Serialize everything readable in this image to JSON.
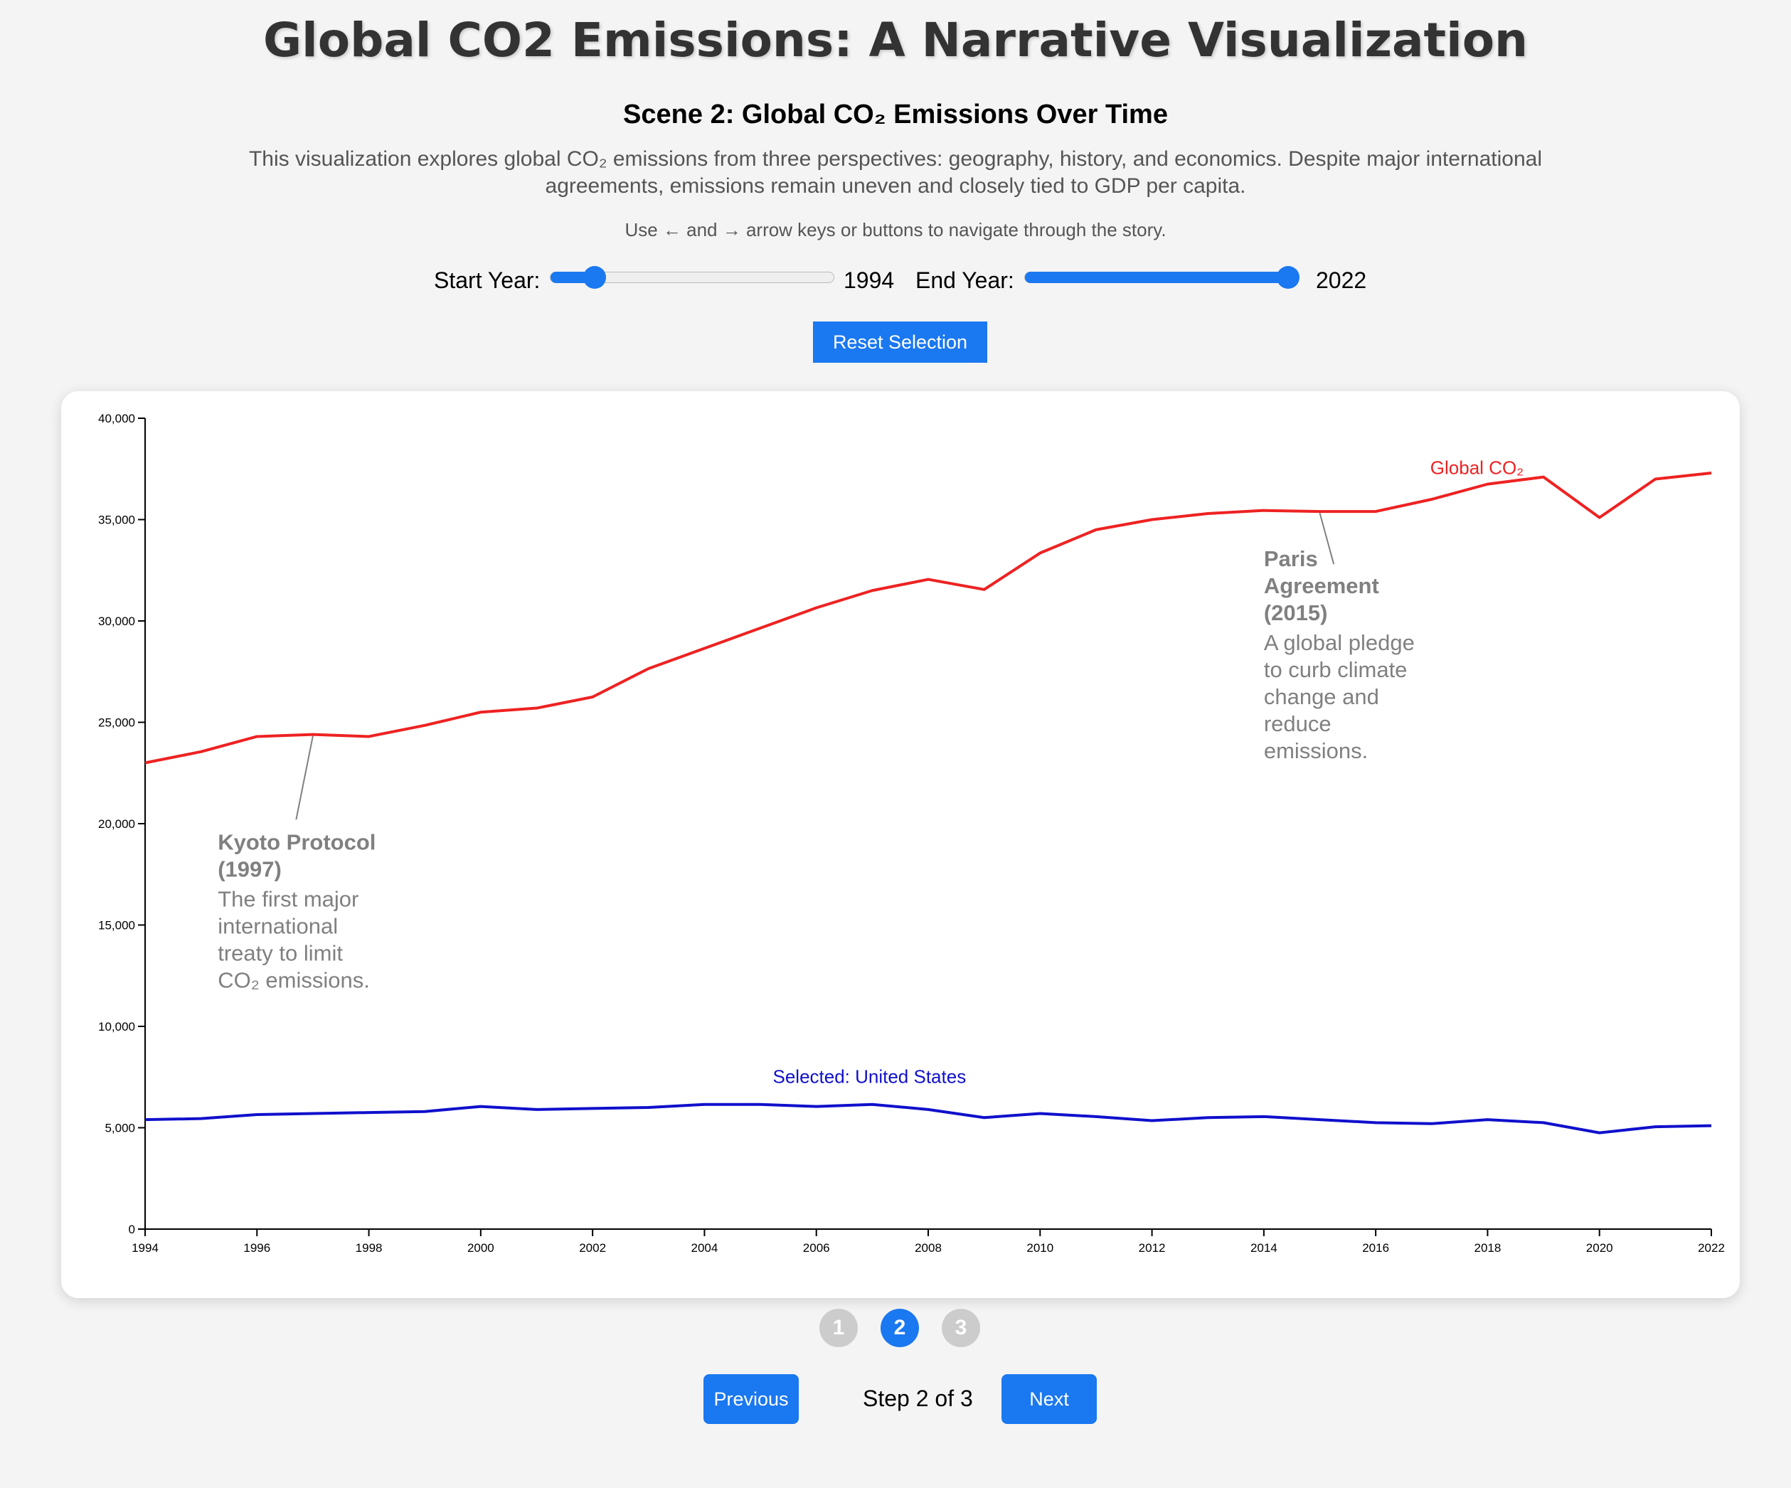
{
  "page": {
    "title": "Global CO2 Emissions: A Narrative Visualization",
    "scene_title": "Scene 2: Global CO₂ Emissions Over Time",
    "intro": "This visualization explores global CO₂ emissions from three perspectives: geography, history, and economics. Despite major international agreements, emissions remain uneven and closely tied to GDP per capita.",
    "hint": "Use ← and → arrow keys or buttons to navigate through the story."
  },
  "controls": {
    "start_label": "Start Year:",
    "end_label": "End Year:",
    "start_year": "1994",
    "end_year": "2022",
    "slider_min": 1990,
    "slider_max": 2022,
    "reset_label": "Reset Selection"
  },
  "navigation": {
    "steps": [
      "1",
      "2",
      "3"
    ],
    "active_step": 1,
    "previous_label": "Previous",
    "next_label": "Next",
    "step_text": "Step 2 of 3"
  },
  "colors": {
    "accent": "#1a78f0",
    "global_line": "#ee2222",
    "selected_line": "#1010cc",
    "annotation": "#808080"
  },
  "chart_data": {
    "type": "line",
    "title": "",
    "xlabel": "",
    "ylabel": "",
    "xlim": [
      1994,
      2022
    ],
    "ylim": [
      0,
      40000
    ],
    "grid": false,
    "x_ticks": [
      "1994",
      "1996",
      "1998",
      "2000",
      "2002",
      "2004",
      "2006",
      "2008",
      "2010",
      "2012",
      "2014",
      "2016",
      "2018",
      "2020",
      "2022"
    ],
    "y_ticks": [
      "0",
      "5,000",
      "10,000",
      "15,000",
      "20,000",
      "25,000",
      "30,000",
      "35,000",
      "40,000"
    ],
    "x": [
      1994,
      1995,
      1996,
      1997,
      1998,
      1999,
      2000,
      2001,
      2002,
      2003,
      2004,
      2005,
      2006,
      2007,
      2008,
      2009,
      2010,
      2011,
      2012,
      2013,
      2014,
      2015,
      2016,
      2017,
      2018,
      2019,
      2020,
      2021,
      2022
    ],
    "series": [
      {
        "name": "Global CO₂",
        "label": "Global CO₂",
        "color": "#ee2222",
        "values": [
          23000,
          23550,
          24300,
          24400,
          24300,
          24850,
          25500,
          25700,
          26250,
          27650,
          28650,
          29650,
          30650,
          31500,
          32050,
          31550,
          33350,
          34500,
          35000,
          35300,
          35450,
          35400,
          35400,
          36000,
          36750,
          37100,
          35100,
          37000,
          37300
        ]
      },
      {
        "name": "United States",
        "label": "Selected: United States",
        "color": "#1010cc",
        "values": [
          5400,
          5450,
          5650,
          5700,
          5750,
          5800,
          6050,
          5900,
          5950,
          6000,
          6150,
          6150,
          6050,
          6150,
          5900,
          5500,
          5700,
          5550,
          5350,
          5500,
          5550,
          5400,
          5250,
          5200,
          5400,
          5250,
          4750,
          5050,
          5100
        ]
      }
    ],
    "annotations": [
      {
        "year": 1997,
        "title_lines": [
          "Kyoto Protocol",
          "(1997)"
        ],
        "body_lines": [
          "The first major",
          "international",
          "treaty to limit",
          "CO₂ emissions."
        ]
      },
      {
        "year": 2015,
        "title_lines": [
          "Paris",
          "Agreement",
          "(2015)"
        ],
        "body_lines": [
          "A global pledge",
          "to curb climate",
          "change and",
          "reduce",
          "emissions."
        ]
      }
    ]
  }
}
